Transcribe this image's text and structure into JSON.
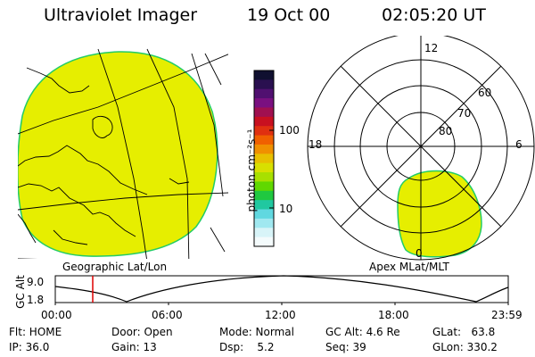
{
  "header": {
    "instrument": "Ultraviolet Imager",
    "date": "19 Oct 00",
    "time": "02:05:20 UT"
  },
  "left_panel": {
    "caption": "Geographic Lat/Lon",
    "fill_color": "#e6ee00"
  },
  "colorbar": {
    "label": "photon cm⁻²s⁻¹",
    "ticks": [
      "100",
      "10"
    ],
    "colors_top_to_bottom": [
      "#101030",
      "#2a1050",
      "#501070",
      "#7a1080",
      "#a01050",
      "#c81020",
      "#e03010",
      "#f06000",
      "#f09000",
      "#e8c000",
      "#d8e000",
      "#a8e000",
      "#60d800",
      "#20c840",
      "#20c8a0",
      "#60d8e0",
      "#a0e8f0",
      "#d8f4f8",
      "#f4fbfc"
    ]
  },
  "right_panel": {
    "caption": "Apex MLat/MLT",
    "mlt_labels": [
      "12",
      "18",
      "6",
      "0"
    ],
    "lat_labels": [
      "60",
      "70",
      "80"
    ],
    "fill_color": "#e6ee00"
  },
  "timeline": {
    "ylabel": "GC Alt",
    "y_ticks": [
      "9.0",
      "1.8"
    ],
    "x_ticks": [
      "00:00",
      "06:00",
      "12:00",
      "18:00",
      "23:59"
    ],
    "marker_color": "#dd0000"
  },
  "info": {
    "flt": "Flt: HOME",
    "ip": "IP: 36.0",
    "door": "Door: Open",
    "gain": "Gain: 13",
    "mode": "Mode: Normal",
    "dsp": "Dsp:    5.2",
    "gc_alt": "GC Alt: 4.6 Re",
    "seq": "Seq: 39",
    "glat": "GLat:   63.8",
    "glon": "GLon: 330.2"
  }
}
